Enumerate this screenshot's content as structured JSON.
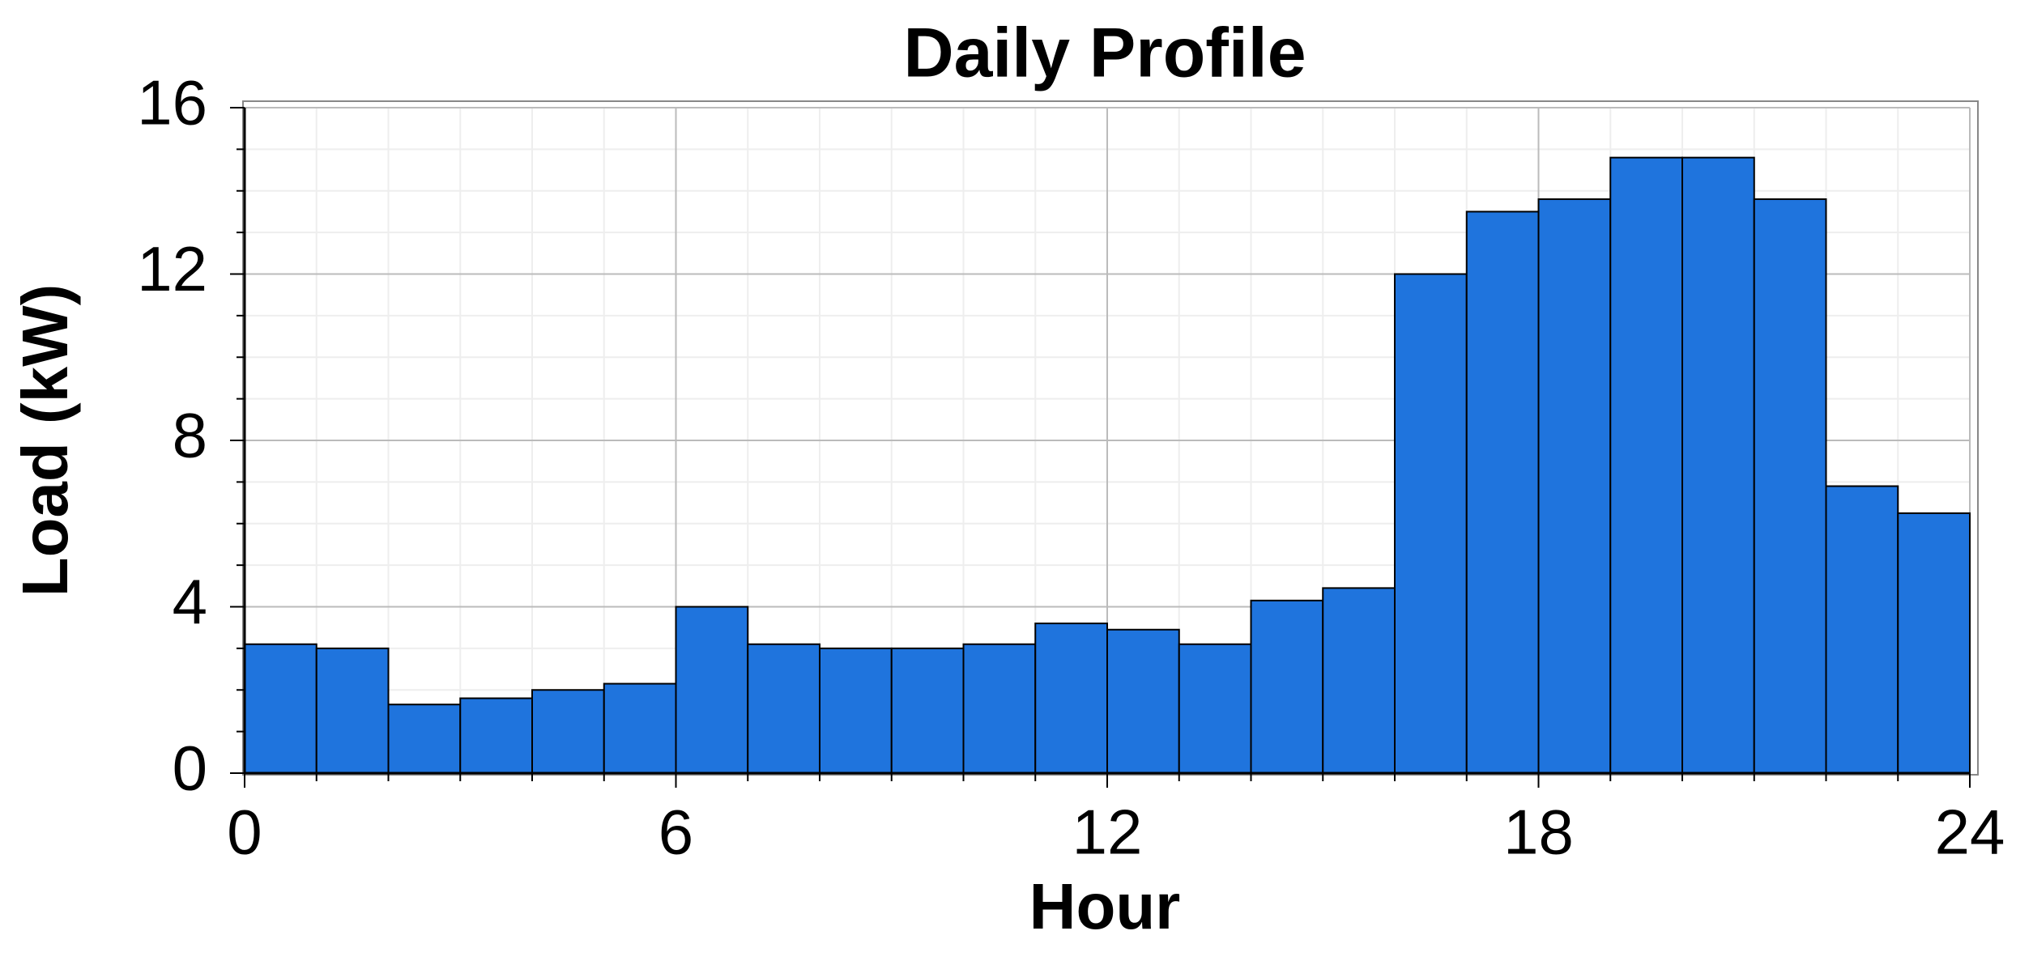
{
  "chart_data": {
    "type": "histogram",
    "title": "Daily Profile",
    "x_label": "Hour",
    "y_label": "Load (kW)",
    "bins": [
      0,
      1,
      2,
      3,
      4,
      5,
      6,
      7,
      8,
      9,
      10,
      11,
      12,
      13,
      14,
      15,
      16,
      17,
      18,
      19,
      20,
      21,
      22,
      23,
      24
    ],
    "values": [
      3.1,
      3.0,
      1.65,
      1.8,
      2.0,
      2.15,
      4.0,
      3.1,
      3.0,
      3.0,
      3.1,
      3.6,
      3.45,
      3.1,
      4.15,
      4.45,
      12.0,
      13.5,
      13.8,
      14.8,
      14.8,
      13.8,
      6.9,
      6.25
    ],
    "color": "#1f74dd",
    "xlim": [
      0,
      24
    ],
    "xticks": [
      0,
      6,
      12,
      18,
      24
    ],
    "ylim": [
      0,
      16
    ],
    "yticks": [
      0,
      4,
      8,
      12,
      16
    ],
    "grid": true,
    "minor_grid": true
  }
}
